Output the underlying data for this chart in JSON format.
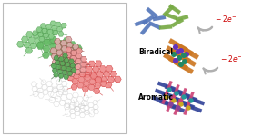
{
  "fig_width": 3.0,
  "fig_height": 1.5,
  "dpi": 100,
  "background": "#ffffff",
  "mol_green_dark": "#4a9a4a",
  "mol_green_light": "#88cc88",
  "mol_green_mid": "#66bb66",
  "mol_red_dark": "#cc3333",
  "mol_red_light": "#ee8888",
  "mol_gray_edge": "#aaaaaa",
  "mol_gray_fill": "#dddddd",
  "arrow_color": "#b0b0b0",
  "minus2e_color": "#cc0000",
  "biradical_label": "Biradical",
  "aromatic_label": "Aromatic",
  "top_blue": "#5577bb",
  "top_green": "#77aa44",
  "mid_orange": "#cc7722",
  "mid_purple": "#6633bb",
  "mid_teal": "#228866",
  "bot_navy": "#334499",
  "bot_pink": "#cc4477",
  "bot_teal": "#229999",
  "bot_yellow": "#ccaa22",
  "bot_purple": "#884499"
}
